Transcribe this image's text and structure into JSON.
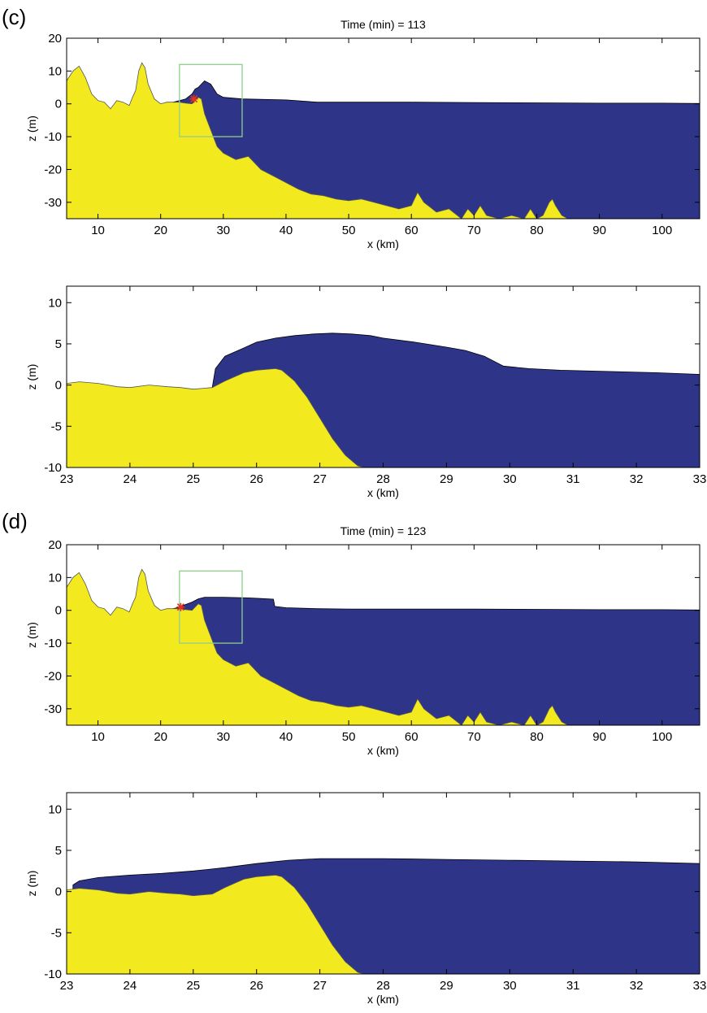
{
  "panel_letters": [
    "(c)",
    "(d)"
  ],
  "colors": {
    "water": "#2e3588",
    "land": "#f2ea1e",
    "zoom_box": "#8ecf8a",
    "marker": "#e53020",
    "wave_crest": "#000000"
  },
  "chart_data": [
    {
      "type": "area",
      "title": "Time (min) = 113",
      "xlabel": "x (km)",
      "ylabel": "z (m)",
      "xlim": [
        5,
        106
      ],
      "ylim": [
        -35,
        20
      ],
      "xticks": [
        10,
        20,
        30,
        40,
        50,
        60,
        70,
        80,
        90,
        100
      ],
      "yticks": [
        20,
        10,
        0,
        -10,
        -20,
        -30
      ],
      "zoom_box": {
        "x": [
          23,
          33
        ],
        "y": [
          -10,
          12
        ]
      },
      "marker": [
        25.3,
        1.5
      ],
      "series": [
        {
          "x": [
            5,
            6,
            7,
            8,
            9,
            10,
            11,
            12,
            13,
            14,
            15,
            15.5,
            16,
            16.5,
            17,
            17.5,
            18,
            19,
            20,
            21,
            22,
            23,
            24,
            25,
            25.5,
            26,
            26.5,
            27,
            28,
            29,
            30,
            32,
            34,
            36,
            38,
            40,
            42,
            44,
            46,
            48,
            50,
            52,
            54,
            56,
            58,
            60,
            61,
            62,
            64,
            66,
            68,
            69,
            70,
            71,
            72,
            74,
            76,
            78,
            79,
            80,
            81,
            82,
            82.5,
            83,
            84,
            85,
            86
          ],
          "y": [
            7,
            10,
            11.5,
            8,
            3,
            1,
            0.5,
            -1.5,
            1,
            0.5,
            -0.5,
            2,
            4,
            10,
            12.5,
            11,
            6,
            1.5,
            0,
            0.5,
            0.5,
            0.5,
            0.2,
            0,
            1,
            2,
            1.5,
            -3,
            -8,
            -13,
            -15,
            -17,
            -16,
            -20,
            -22,
            -24,
            -26,
            -27.5,
            -28,
            -29,
            -29.5,
            -29,
            -30,
            -31,
            -32,
            -31,
            -27,
            -30,
            -33,
            -32,
            -35,
            -32,
            -34,
            -31,
            -34,
            -35,
            -34,
            -35,
            -32,
            -35,
            -34,
            -30,
            -29,
            -31,
            -34,
            -35,
            -35
          ]
        },
        {
          "x": [
            22,
            24,
            25,
            25.5,
            26,
            26.5,
            27,
            27.5,
            28,
            29,
            30,
            33,
            40,
            45,
            50,
            60,
            70,
            80,
            90,
            100,
            106
          ],
          "y": [
            0.5,
            1.5,
            3,
            4.5,
            5,
            6,
            7,
            6.5,
            6,
            3,
            2,
            1.5,
            1.2,
            0.5,
            0.5,
            0.5,
            0.4,
            0.3,
            0.2,
            0.2,
            0.1
          ]
        }
      ]
    },
    {
      "type": "area",
      "xlabel": "x (km)",
      "ylabel": "z (m)",
      "xlim": [
        23,
        33
      ],
      "ylim": [
        -10,
        12
      ],
      "xticks": [
        23,
        24,
        25,
        26,
        27,
        28,
        29,
        30,
        31,
        32,
        33
      ],
      "yticks": [
        10,
        5,
        0,
        -5,
        -10
      ],
      "series": [
        {
          "x": [
            23,
            23.2,
            23.5,
            23.8,
            24,
            24.3,
            24.6,
            24.8,
            25,
            25.3,
            25.5,
            25.8,
            26,
            26.3,
            26.4,
            26.6,
            26.8,
            27,
            27.2,
            27.4,
            27.6,
            27.7
          ],
          "y": [
            0.2,
            0.4,
            0.2,
            -0.2,
            -0.3,
            0,
            -0.2,
            -0.3,
            -0.5,
            -0.3,
            0.5,
            1.5,
            1.8,
            2,
            1.8,
            0.5,
            -1.5,
            -4,
            -6.5,
            -8.5,
            -9.8,
            -10
          ]
        },
        {
          "x": [
            25.3,
            25.35,
            25.5,
            25.8,
            26,
            26.3,
            26.6,
            26.9,
            27.2,
            27.5,
            27.8,
            28,
            28.5,
            29,
            29.3,
            29.6,
            29.9,
            30.3,
            30.8,
            31.3,
            31.8,
            32.3,
            33
          ],
          "y": [
            -0.3,
            2,
            3.5,
            4.5,
            5.2,
            5.7,
            6,
            6.2,
            6.3,
            6.2,
            6,
            5.7,
            5.2,
            4.6,
            4.2,
            3.5,
            2.3,
            2,
            1.8,
            1.7,
            1.6,
            1.5,
            1.3
          ]
        }
      ]
    },
    {
      "type": "area",
      "title": "Time (min) = 123",
      "xlabel": "x (km)",
      "ylabel": "z (m)",
      "xlim": [
        5,
        106
      ],
      "ylim": [
        -35,
        20
      ],
      "xticks": [
        10,
        20,
        30,
        40,
        50,
        60,
        70,
        80,
        90,
        100
      ],
      "yticks": [
        20,
        10,
        0,
        -10,
        -20,
        -30
      ],
      "zoom_box": {
        "x": [
          23,
          33
        ],
        "y": [
          -10,
          12
        ]
      },
      "marker": [
        23.2,
        1
      ],
      "series": [
        {
          "x": [
            5,
            6,
            7,
            8,
            9,
            10,
            11,
            12,
            13,
            14,
            15,
            15.5,
            16,
            16.5,
            17,
            17.5,
            18,
            19,
            20,
            21,
            22,
            23,
            24,
            25,
            25.5,
            26,
            26.5,
            27,
            28,
            29,
            30,
            32,
            34,
            36,
            38,
            40,
            42,
            44,
            46,
            48,
            50,
            52,
            54,
            56,
            58,
            60,
            61,
            62,
            64,
            66,
            68,
            69,
            70,
            71,
            72,
            74,
            76,
            78,
            79,
            80,
            81,
            82,
            82.5,
            83,
            84,
            85,
            86
          ],
          "y": [
            7,
            10,
            11.5,
            8,
            3,
            1,
            0.5,
            -1.5,
            1,
            0.5,
            -0.5,
            2,
            4,
            10,
            12.5,
            11,
            6,
            1.5,
            0,
            0.5,
            0.5,
            0.5,
            0.2,
            0,
            1,
            2,
            1.5,
            -3,
            -8,
            -13,
            -15,
            -17,
            -16,
            -20,
            -22,
            -24,
            -26,
            -27.5,
            -28,
            -29,
            -29.5,
            -29,
            -30,
            -31,
            -32,
            -31,
            -27,
            -30,
            -33,
            -32,
            -35,
            -32,
            -34,
            -31,
            -34,
            -35,
            -34,
            -35,
            -32,
            -35,
            -34,
            -30,
            -29,
            -31,
            -34,
            -35,
            -35
          ]
        },
        {
          "x": [
            22,
            23,
            24,
            25,
            26,
            27,
            28,
            30,
            32,
            34,
            36,
            38,
            38.2,
            40,
            45,
            50,
            60,
            70,
            80,
            90,
            100,
            106
          ],
          "y": [
            0.5,
            1,
            1.8,
            2.5,
            3.5,
            4,
            4,
            4,
            3.9,
            3.8,
            3.6,
            3.4,
            1.2,
            0.8,
            0.5,
            0.4,
            0.4,
            0.4,
            0.3,
            0.2,
            0.2,
            0.1
          ]
        }
      ]
    },
    {
      "type": "area",
      "xlabel": "x (km)",
      "ylabel": "z (m)",
      "xlim": [
        23,
        33
      ],
      "ylim": [
        -10,
        12
      ],
      "xticks": [
        23,
        24,
        25,
        26,
        27,
        28,
        29,
        30,
        31,
        32,
        33
      ],
      "yticks": [
        10,
        5,
        0,
        -5,
        -10
      ],
      "series": [
        {
          "x": [
            23,
            23.2,
            23.5,
            23.8,
            24,
            24.3,
            24.6,
            24.8,
            25,
            25.3,
            25.5,
            25.8,
            26,
            26.3,
            26.4,
            26.6,
            26.8,
            27,
            27.2,
            27.4,
            27.6,
            27.7
          ],
          "y": [
            0.2,
            0.4,
            0.2,
            -0.2,
            -0.3,
            0,
            -0.2,
            -0.3,
            -0.5,
            -0.3,
            0.5,
            1.5,
            1.8,
            2,
            1.8,
            0.5,
            -1.5,
            -4,
            -6.5,
            -8.5,
            -9.8,
            -10
          ]
        },
        {
          "x": [
            23.1,
            23.2,
            23.5,
            24,
            24.5,
            25,
            25.5,
            26,
            26.5,
            27,
            28,
            29,
            30,
            31,
            32,
            33
          ],
          "y": [
            0.8,
            1.3,
            1.7,
            2,
            2.2,
            2.5,
            2.9,
            3.4,
            3.8,
            4,
            4,
            3.9,
            3.8,
            3.7,
            3.6,
            3.4
          ]
        }
      ]
    }
  ]
}
